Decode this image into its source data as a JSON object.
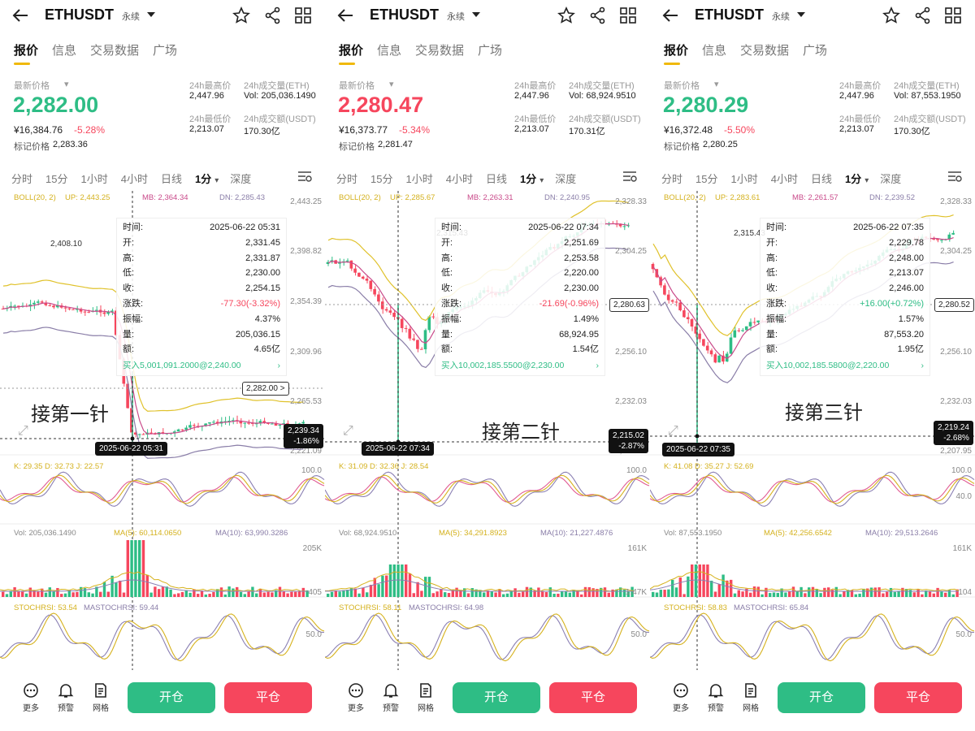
{
  "colors": {
    "up": "#2ebd85",
    "down": "#f6465d",
    "boll_up": "#e0c22c",
    "boll_mb": "#c94a8a",
    "boll_dn": "#8a7ea8",
    "k": "#d6b21e",
    "d": "#e05a93",
    "j": "#8a7fb3"
  },
  "common": {
    "symbol": "ETHUSDT",
    "perp": "永续",
    "tabs": [
      "报价",
      "信息",
      "交易数据",
      "广场"
    ],
    "latest_label": "最新价格",
    "l_high": "24h最高价",
    "l_vol": "24h成交量(ETH)",
    "l_low": "24h最低价",
    "l_amt": "24h成交额(USDT)",
    "mark_label": "标记价格",
    "timeframes": [
      "分时",
      "15分",
      "1小时",
      "4小时",
      "日线",
      "1分",
      "深度"
    ],
    "tip_labels": [
      "时间:",
      "开:",
      "高:",
      "低:",
      "收:",
      "涨跌:",
      "振幅:",
      "量:",
      "额:"
    ],
    "more": "更多",
    "alert": "预警",
    "grid": "网格",
    "open": "开仓",
    "close": "平仓",
    "icons": [
      "back-arrow-icon",
      "star-icon",
      "share-icon",
      "grid-icon",
      "settings-icon",
      "more-icon",
      "bell-icon",
      "grid-bot-icon"
    ]
  },
  "panels": [
    {
      "price": "2,282.00",
      "dir": "up",
      "cny": "¥16,384.76",
      "pct": "-5.28%",
      "mark": "2,283.36",
      "high": "2,447.96",
      "vol": "Vol: 205,036.1490",
      "low": "2,213.07",
      "amt": "170.30亿",
      "boll": "BOLL(20, 2)",
      "boll_up": "UP: 2,443.25",
      "boll_mb": "MB: 2,364.34",
      "boll_dn": "DN: 2,285.43",
      "yaxis": [
        "2,443.25",
        "2,398.82",
        "2,354.39",
        "2,309.96",
        "2,265.53",
        "2,221.09"
      ],
      "peak": "2,408.10",
      "tip": {
        "time": "2025-06-22 05:31",
        "open": "2,331.45",
        "high": "2,331.87",
        "low": "2,230.00",
        "close": "2,254.15",
        "chg": "-77.30(-3.32%)",
        "amp": "4.37%",
        "vol": "205,036.15",
        "amt": "4.65亿",
        "buy": "买入5,001,091.2000@2,240.00"
      },
      "cur_price": "2,282.00 >",
      "cross_price": "2,239.34",
      "cross_pct": "-1.86%",
      "cross_time": "2025-06-22 05:31",
      "annotation": "接第一针",
      "kdj": "K: 29.35   D: 32.73   J: 22.57",
      "kdj_y": "100.0",
      "ma5": "MA(5): 60,114.0650",
      "ma10": "MA(10): 63,990.3286",
      "vol_top": "205K",
      "vol_bot": "405",
      "stoch": "STOCHRSI: 53.54",
      "mastoch": "MASTOCHRSI: 59.44",
      "stoch_y": "50.0"
    },
    {
      "price": "2,280.47",
      "dir": "down",
      "cny": "¥16,373.77",
      "pct": "-5.34%",
      "mark": "2,281.47",
      "high": "2,447.96",
      "vol": "Vol: 68,924.9510",
      "low": "2,213.07",
      "amt": "170.31亿",
      "boll": "BOLL(20, 2)",
      "boll_up": "UP: 2,285.67",
      "boll_mb": "MB: 2,263.31",
      "boll_dn": "DN: 2,240.95",
      "yaxis": [
        "2,328.33",
        "2,304.25",
        "2,280.18",
        "2,256.10",
        "2,232.03",
        "2,207.95"
      ],
      "peak": "2,315.43",
      "tip": {
        "time": "2025-06-22 07:34",
        "open": "2,251.69",
        "high": "2,253.58",
        "low": "2,220.00",
        "close": "2,230.00",
        "chg": "-21.69(-0.96%)",
        "amp": "1.49%",
        "vol": "68,924.95",
        "amt": "1.54亿",
        "buy": "买入10,002,185.5500@2,230.00"
      },
      "cur_price": "2,280.63",
      "cross_price": "2,215.02",
      "cross_pct": "-2.87%",
      "cross_time": "2025-06-22 07:34",
      "annotation": "接第二针",
      "kdj": "K: 31.09   D: 32.36   J: 28.54",
      "kdj_y": "100.0",
      "ma5": "MA(5): 34,291.8923",
      "ma10": "MA(10): 21,227.4876",
      "vol_top": "161K",
      "vol_bot": "1.47K",
      "stoch": "STOCHRSI: 58.11",
      "mastoch": "MASTOCHRSI: 64.98",
      "stoch_y": "50.0"
    },
    {
      "price": "2,280.29",
      "dir": "up",
      "cny": "¥16,372.48",
      "pct": "-5.50%",
      "mark": "2,280.25",
      "high": "2,447.96",
      "vol": "Vol: 87,553.1950",
      "low": "2,213.07",
      "amt": "170.30亿",
      "boll": "BOLL(20, 2)",
      "boll_up": "UP: 2,283.61",
      "boll_mb": "MB: 2,261.57",
      "boll_dn": "DN: 2,239.52",
      "yaxis": [
        "2,328.33",
        "2,304.25",
        "2,280.18",
        "2,256.10",
        "2,232.03",
        "2,207.95"
      ],
      "peak": "2,315.43",
      "tip": {
        "time": "2025-06-22 07:35",
        "open": "2,229.78",
        "high": "2,248.00",
        "low": "2,213.07",
        "close": "2,246.00",
        "chg": "+16.00(+0.72%)",
        "amp": "1.57%",
        "vol": "87,553.20",
        "amt": "1.95亿",
        "buy": "买入10,002,185.5800@2,220.00"
      },
      "cur_price": "2,280.52",
      "cross_price": "2,219.24",
      "cross_pct": "-2.68%",
      "cross_time": "2025-06-22 07:35",
      "annotation": "接第三针",
      "kdj": "K: 41.08   D: 35.27   J: 52.69",
      "kdj_y": "100.0",
      "kdj_y2": "40.0",
      "ma5": "MA(5): 42,256.6542",
      "ma10": "MA(10): 29,513.2646",
      "vol_top": "161K",
      "vol_bot": "104",
      "stoch": "STOCHRSI: 58.83",
      "mastoch": "MASTOCHRSI: 65.84",
      "stoch_y": "50.0"
    }
  ]
}
